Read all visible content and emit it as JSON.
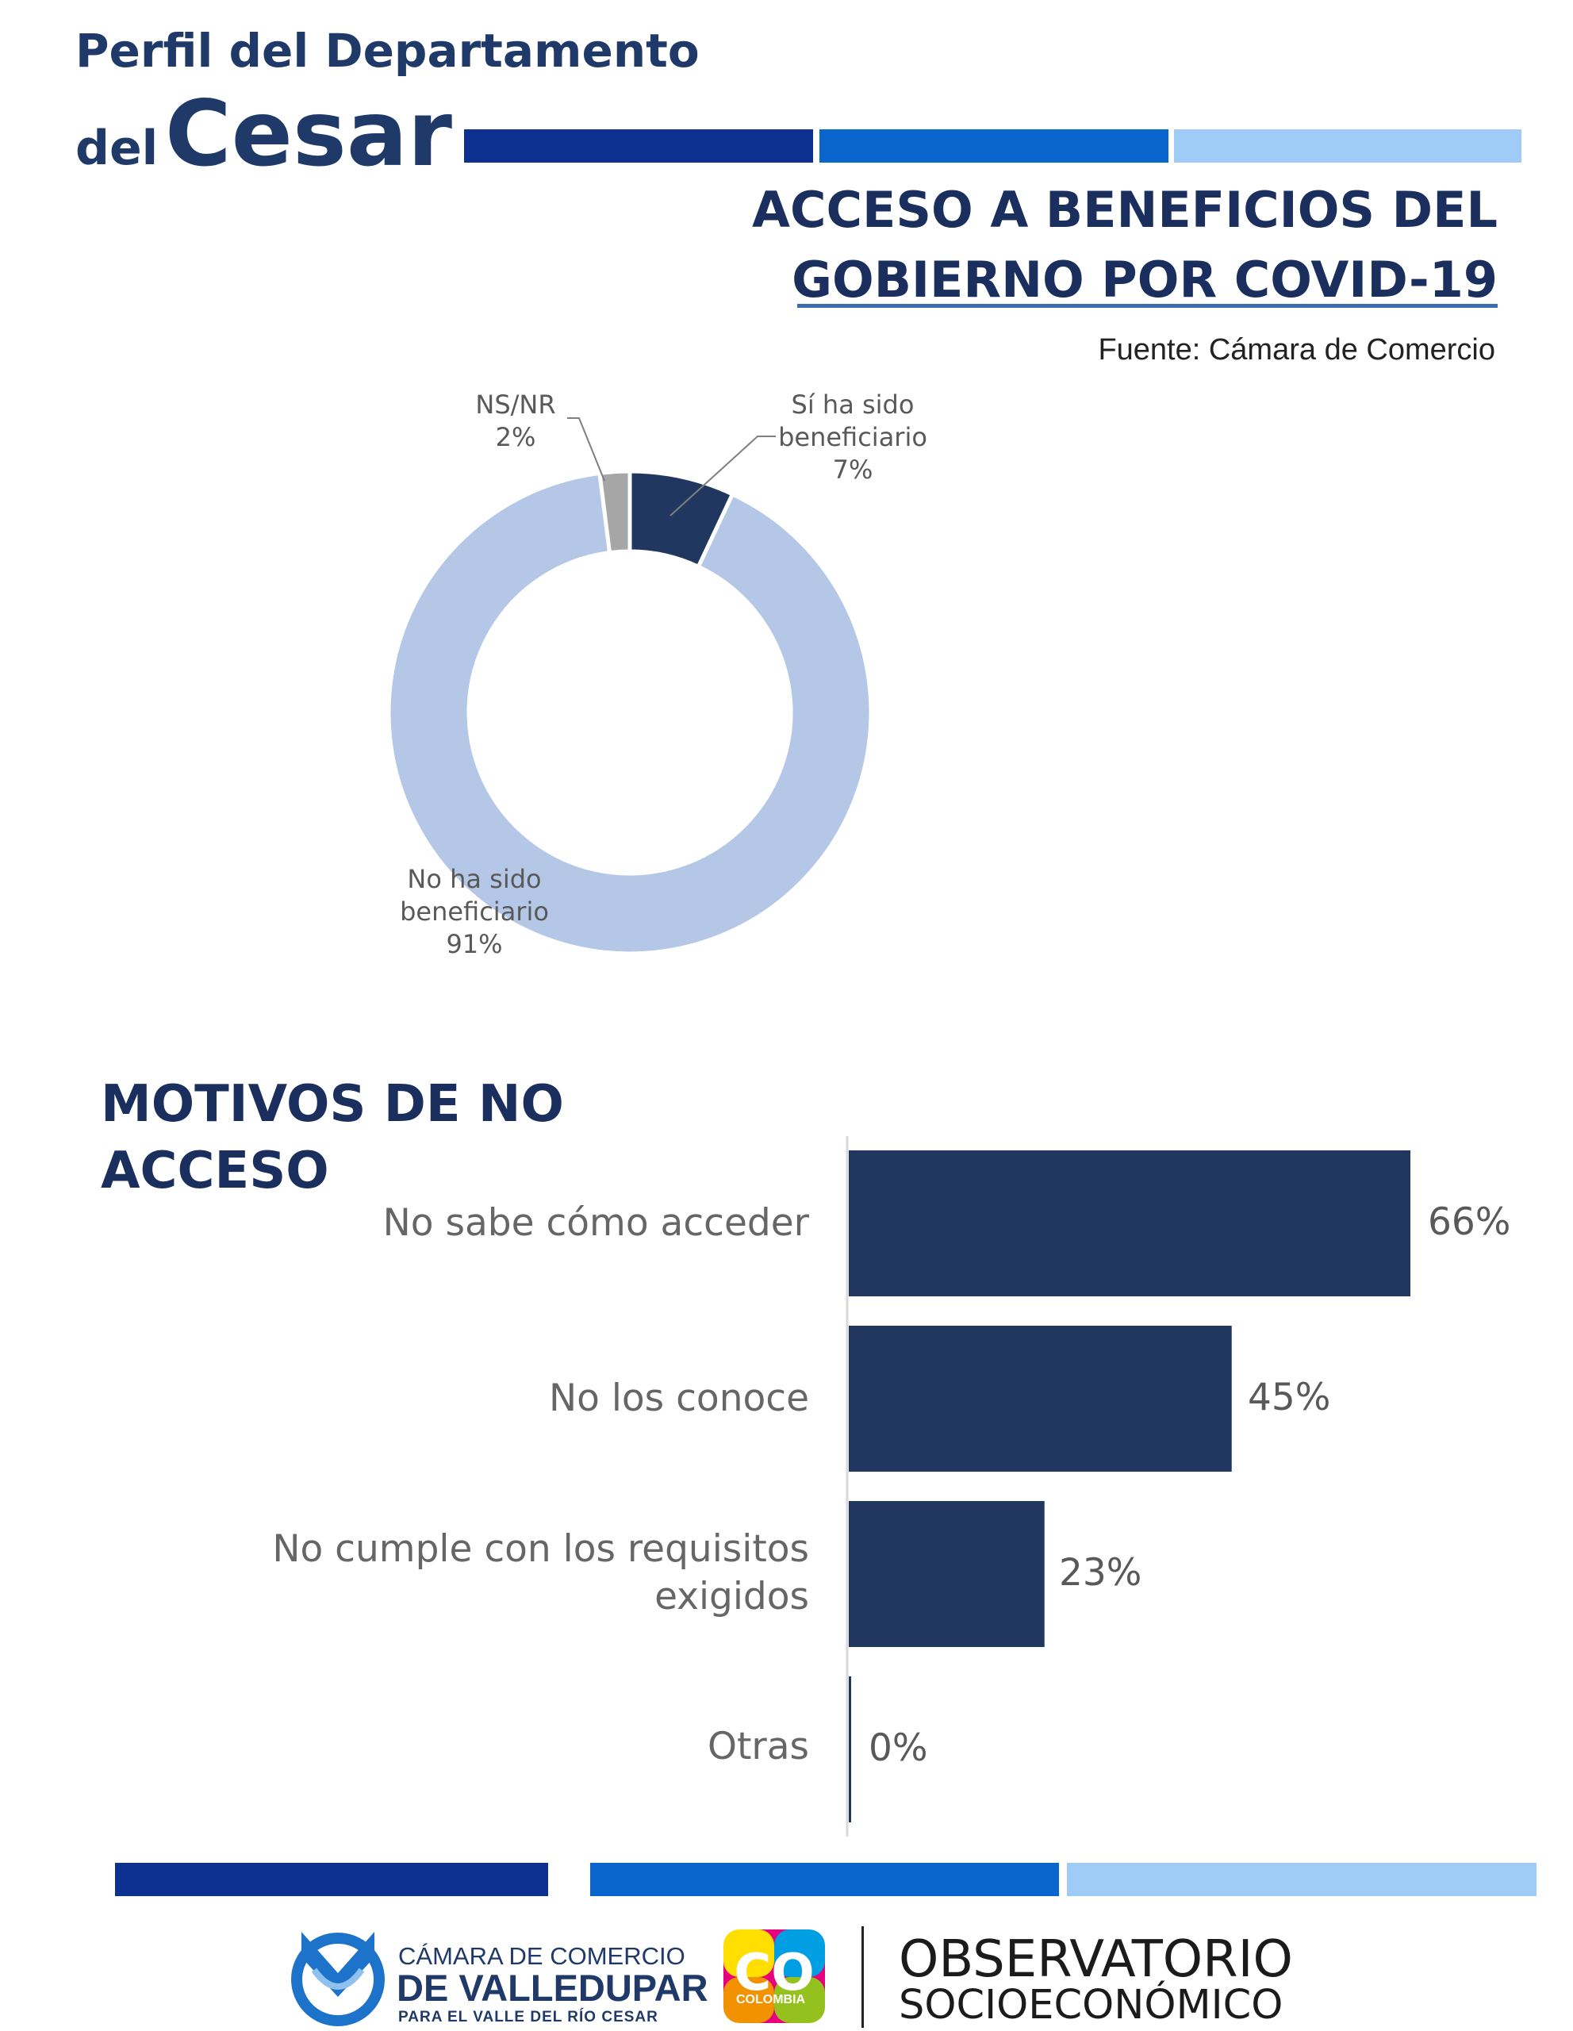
{
  "header": {
    "line1": "Perfil del Departamento",
    "line2_prefix": "del",
    "line2_main": "Cesar"
  },
  "colors": {
    "stripe_dark": "#0d3191",
    "stripe_mid": "#0a66cd",
    "stripe_light": "#9fccf6",
    "bar": "#22375f",
    "donut_beneficiario": "#22375f",
    "donut_no_beneficiario": "#b4c7e7",
    "donut_nsnr": "#a6a6a6"
  },
  "title": {
    "line1": "ACCESO A BENEFICIOS DEL",
    "line2": "GOBIERNO POR COVID-19"
  },
  "source": "Fuente: Cámara de Comercio",
  "section_title": {
    "line1": "MOTIVOS DE NO",
    "line2": "ACCESO"
  },
  "chart_data": [
    {
      "type": "pie",
      "variant": "donut",
      "slices": [
        {
          "label_lines": [
            "Sí ha sido",
            "beneficiario"
          ],
          "value": 7,
          "display": "7%"
        },
        {
          "label_lines": [
            "No ha sido",
            "beneficiario"
          ],
          "value": 91,
          "display": "91%"
        },
        {
          "label_lines": [
            "NS/NR"
          ],
          "value": 2,
          "display": "2%"
        }
      ]
    },
    {
      "type": "bar",
      "orientation": "horizontal",
      "categories": [
        [
          "No sabe cómo acceder"
        ],
        [
          "No los conoce"
        ],
        [
          "No cumple con los requisitos",
          "exigidos"
        ],
        [
          "Otras"
        ]
      ],
      "values": [
        66,
        45,
        23,
        0
      ],
      "value_labels": [
        "66%",
        "45%",
        "23%",
        "0%"
      ],
      "xlim": [
        0,
        100
      ],
      "grid": false
    }
  ],
  "footer": {
    "cc_line1": "CÁMARA DE COMERCIO",
    "cc_line2": "DE VALLEDUPAR",
    "cc_line3": "PARA EL VALLE DEL RÍO CESAR",
    "co_badge": "CO",
    "co_text": "COLOMBIA",
    "obs_line1": "OBSERVATORIO",
    "obs_line2": "SOCIOECONÓMICO"
  }
}
